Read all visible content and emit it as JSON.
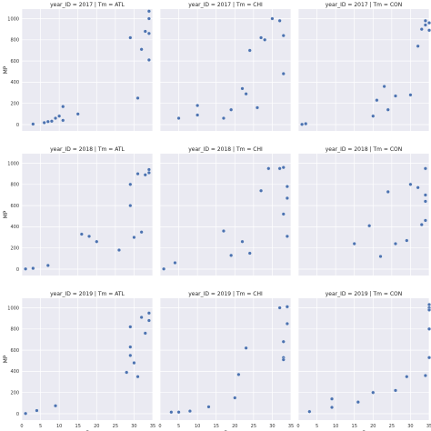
{
  "chart_data": {
    "type": "scatter",
    "xlabel": "G",
    "ylabel": "MP",
    "xlim": [
      0,
      35
    ],
    "ylim": [
      -60,
      1090
    ],
    "xticks": [
      0,
      5,
      10,
      15,
      20,
      25,
      30,
      35
    ],
    "yticks": [
      0,
      200,
      400,
      600,
      800,
      1000
    ],
    "grid": true,
    "point_color": "#4c72b0",
    "panel_color": "#eaeaf2",
    "panels": [
      {
        "title": "year_ID = 2017 | Tm = ATL",
        "points": [
          [
            3,
            5
          ],
          [
            6,
            18
          ],
          [
            7,
            28
          ],
          [
            8,
            32
          ],
          [
            9,
            60
          ],
          [
            10,
            80
          ],
          [
            11,
            40
          ],
          [
            11,
            170
          ],
          [
            15,
            100
          ],
          [
            29,
            820
          ],
          [
            31,
            250
          ],
          [
            32,
            710
          ],
          [
            33,
            880
          ],
          [
            34,
            1000
          ],
          [
            34,
            1070
          ],
          [
            34,
            610
          ],
          [
            34,
            860
          ]
        ]
      },
      {
        "title": "year_ID = 2017 | Tm = CHI",
        "points": [
          [
            5,
            60
          ],
          [
            10,
            180
          ],
          [
            10,
            90
          ],
          [
            17,
            60
          ],
          [
            19,
            140
          ],
          [
            22,
            340
          ],
          [
            23,
            290
          ],
          [
            24,
            700
          ],
          [
            26,
            160
          ],
          [
            27,
            820
          ],
          [
            28,
            800
          ],
          [
            30,
            1000
          ],
          [
            32,
            980
          ],
          [
            33,
            840
          ],
          [
            33,
            480
          ]
        ]
      },
      {
        "title": "year_ID = 2017 | Tm = CON",
        "points": [
          [
            1,
            2
          ],
          [
            2,
            8
          ],
          [
            20,
            80
          ],
          [
            21,
            230
          ],
          [
            23,
            360
          ],
          [
            24,
            140
          ],
          [
            26,
            270
          ],
          [
            30,
            280
          ],
          [
            32,
            740
          ],
          [
            33,
            900
          ],
          [
            34,
            980
          ],
          [
            34,
            940
          ],
          [
            35,
            960
          ],
          [
            35,
            890
          ]
        ]
      },
      {
        "title": "year_ID = 2018 | Tm = ATL",
        "points": [
          [
            1,
            2
          ],
          [
            3,
            8
          ],
          [
            7,
            35
          ],
          [
            16,
            330
          ],
          [
            18,
            310
          ],
          [
            20,
            260
          ],
          [
            26,
            180
          ],
          [
            29,
            800
          ],
          [
            29,
            600
          ],
          [
            30,
            300
          ],
          [
            31,
            900
          ],
          [
            32,
            350
          ],
          [
            33,
            890
          ],
          [
            34,
            940
          ],
          [
            34,
            910
          ]
        ]
      },
      {
        "title": "year_ID = 2018 | Tm = CHI",
        "points": [
          [
            1,
            2
          ],
          [
            4,
            60
          ],
          [
            17,
            360
          ],
          [
            19,
            130
          ],
          [
            22,
            260
          ],
          [
            24,
            150
          ],
          [
            27,
            740
          ],
          [
            29,
            950
          ],
          [
            32,
            950
          ],
          [
            33,
            960
          ],
          [
            33,
            520
          ],
          [
            34,
            670
          ],
          [
            34,
            780
          ],
          [
            34,
            310
          ]
        ]
      },
      {
        "title": "year_ID = 2018 | Tm = CON",
        "points": [
          [
            15,
            240
          ],
          [
            19,
            410
          ],
          [
            22,
            120
          ],
          [
            24,
            730
          ],
          [
            26,
            240
          ],
          [
            29,
            270
          ],
          [
            30,
            800
          ],
          [
            32,
            770
          ],
          [
            33,
            420
          ],
          [
            34,
            950
          ],
          [
            34,
            460
          ],
          [
            34,
            700
          ],
          [
            34,
            640
          ]
        ]
      },
      {
        "title": "year_ID = 2019 | Tm = ATL",
        "points": [
          [
            1,
            2
          ],
          [
            4,
            30
          ],
          [
            9,
            75
          ],
          [
            28,
            390
          ],
          [
            29,
            820
          ],
          [
            29,
            630
          ],
          [
            29,
            550
          ],
          [
            30,
            480
          ],
          [
            31,
            350
          ],
          [
            32,
            910
          ],
          [
            33,
            760
          ],
          [
            34,
            950
          ],
          [
            34,
            880
          ]
        ]
      },
      {
        "title": "year_ID = 2019 | Tm = CHI",
        "points": [
          [
            3,
            15
          ],
          [
            5,
            15
          ],
          [
            8,
            25
          ],
          [
            13,
            65
          ],
          [
            20,
            150
          ],
          [
            21,
            370
          ],
          [
            23,
            620
          ],
          [
            32,
            1000
          ],
          [
            33,
            530
          ],
          [
            33,
            680
          ],
          [
            33,
            510
          ],
          [
            34,
            1010
          ],
          [
            34,
            850
          ]
        ]
      },
      {
        "title": "year_ID = 2019 | Tm = CON",
        "points": [
          [
            3,
            20
          ],
          [
            9,
            60
          ],
          [
            9,
            140
          ],
          [
            16,
            110
          ],
          [
            20,
            200
          ],
          [
            26,
            220
          ],
          [
            29,
            350
          ],
          [
            34,
            360
          ],
          [
            35,
            1000
          ],
          [
            35,
            1030
          ],
          [
            35,
            980
          ],
          [
            35,
            800
          ],
          [
            35,
            530
          ]
        ]
      }
    ]
  }
}
